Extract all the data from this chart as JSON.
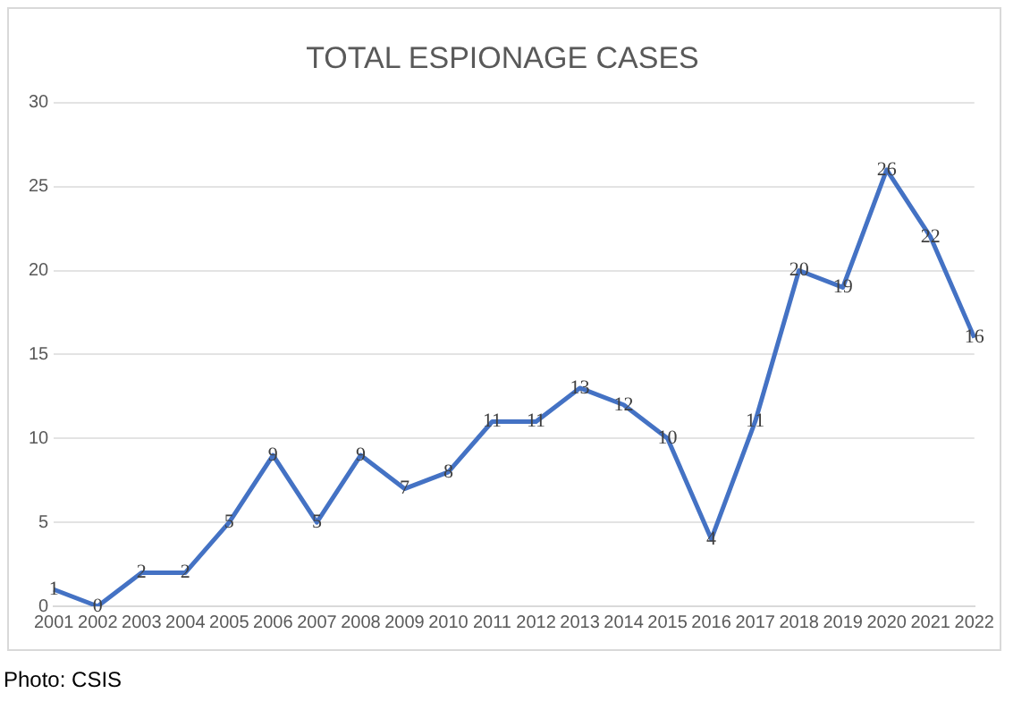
{
  "chart_data": {
    "type": "line",
    "title": "TOTAL ESPIONAGE CASES",
    "categories": [
      "2001",
      "2002",
      "2003",
      "2004",
      "2005",
      "2006",
      "2007",
      "2008",
      "2009",
      "2010",
      "2011",
      "2012",
      "2013",
      "2014",
      "2015",
      "2016",
      "2017",
      "2018",
      "2019",
      "2020",
      "2021",
      "2022"
    ],
    "values": [
      1,
      0,
      2,
      2,
      5,
      9,
      5,
      9,
      7,
      8,
      11,
      11,
      13,
      12,
      10,
      4,
      11,
      20,
      19,
      26,
      22,
      16
    ],
    "color": "#4472c4",
    "ylim": [
      0,
      30
    ],
    "yticks": [
      0,
      5,
      10,
      15,
      20,
      25,
      30
    ],
    "grid": "y",
    "legend": false,
    "marker": "none",
    "data_labels": true,
    "annotations": [
      "Photo: CSIS"
    ]
  }
}
